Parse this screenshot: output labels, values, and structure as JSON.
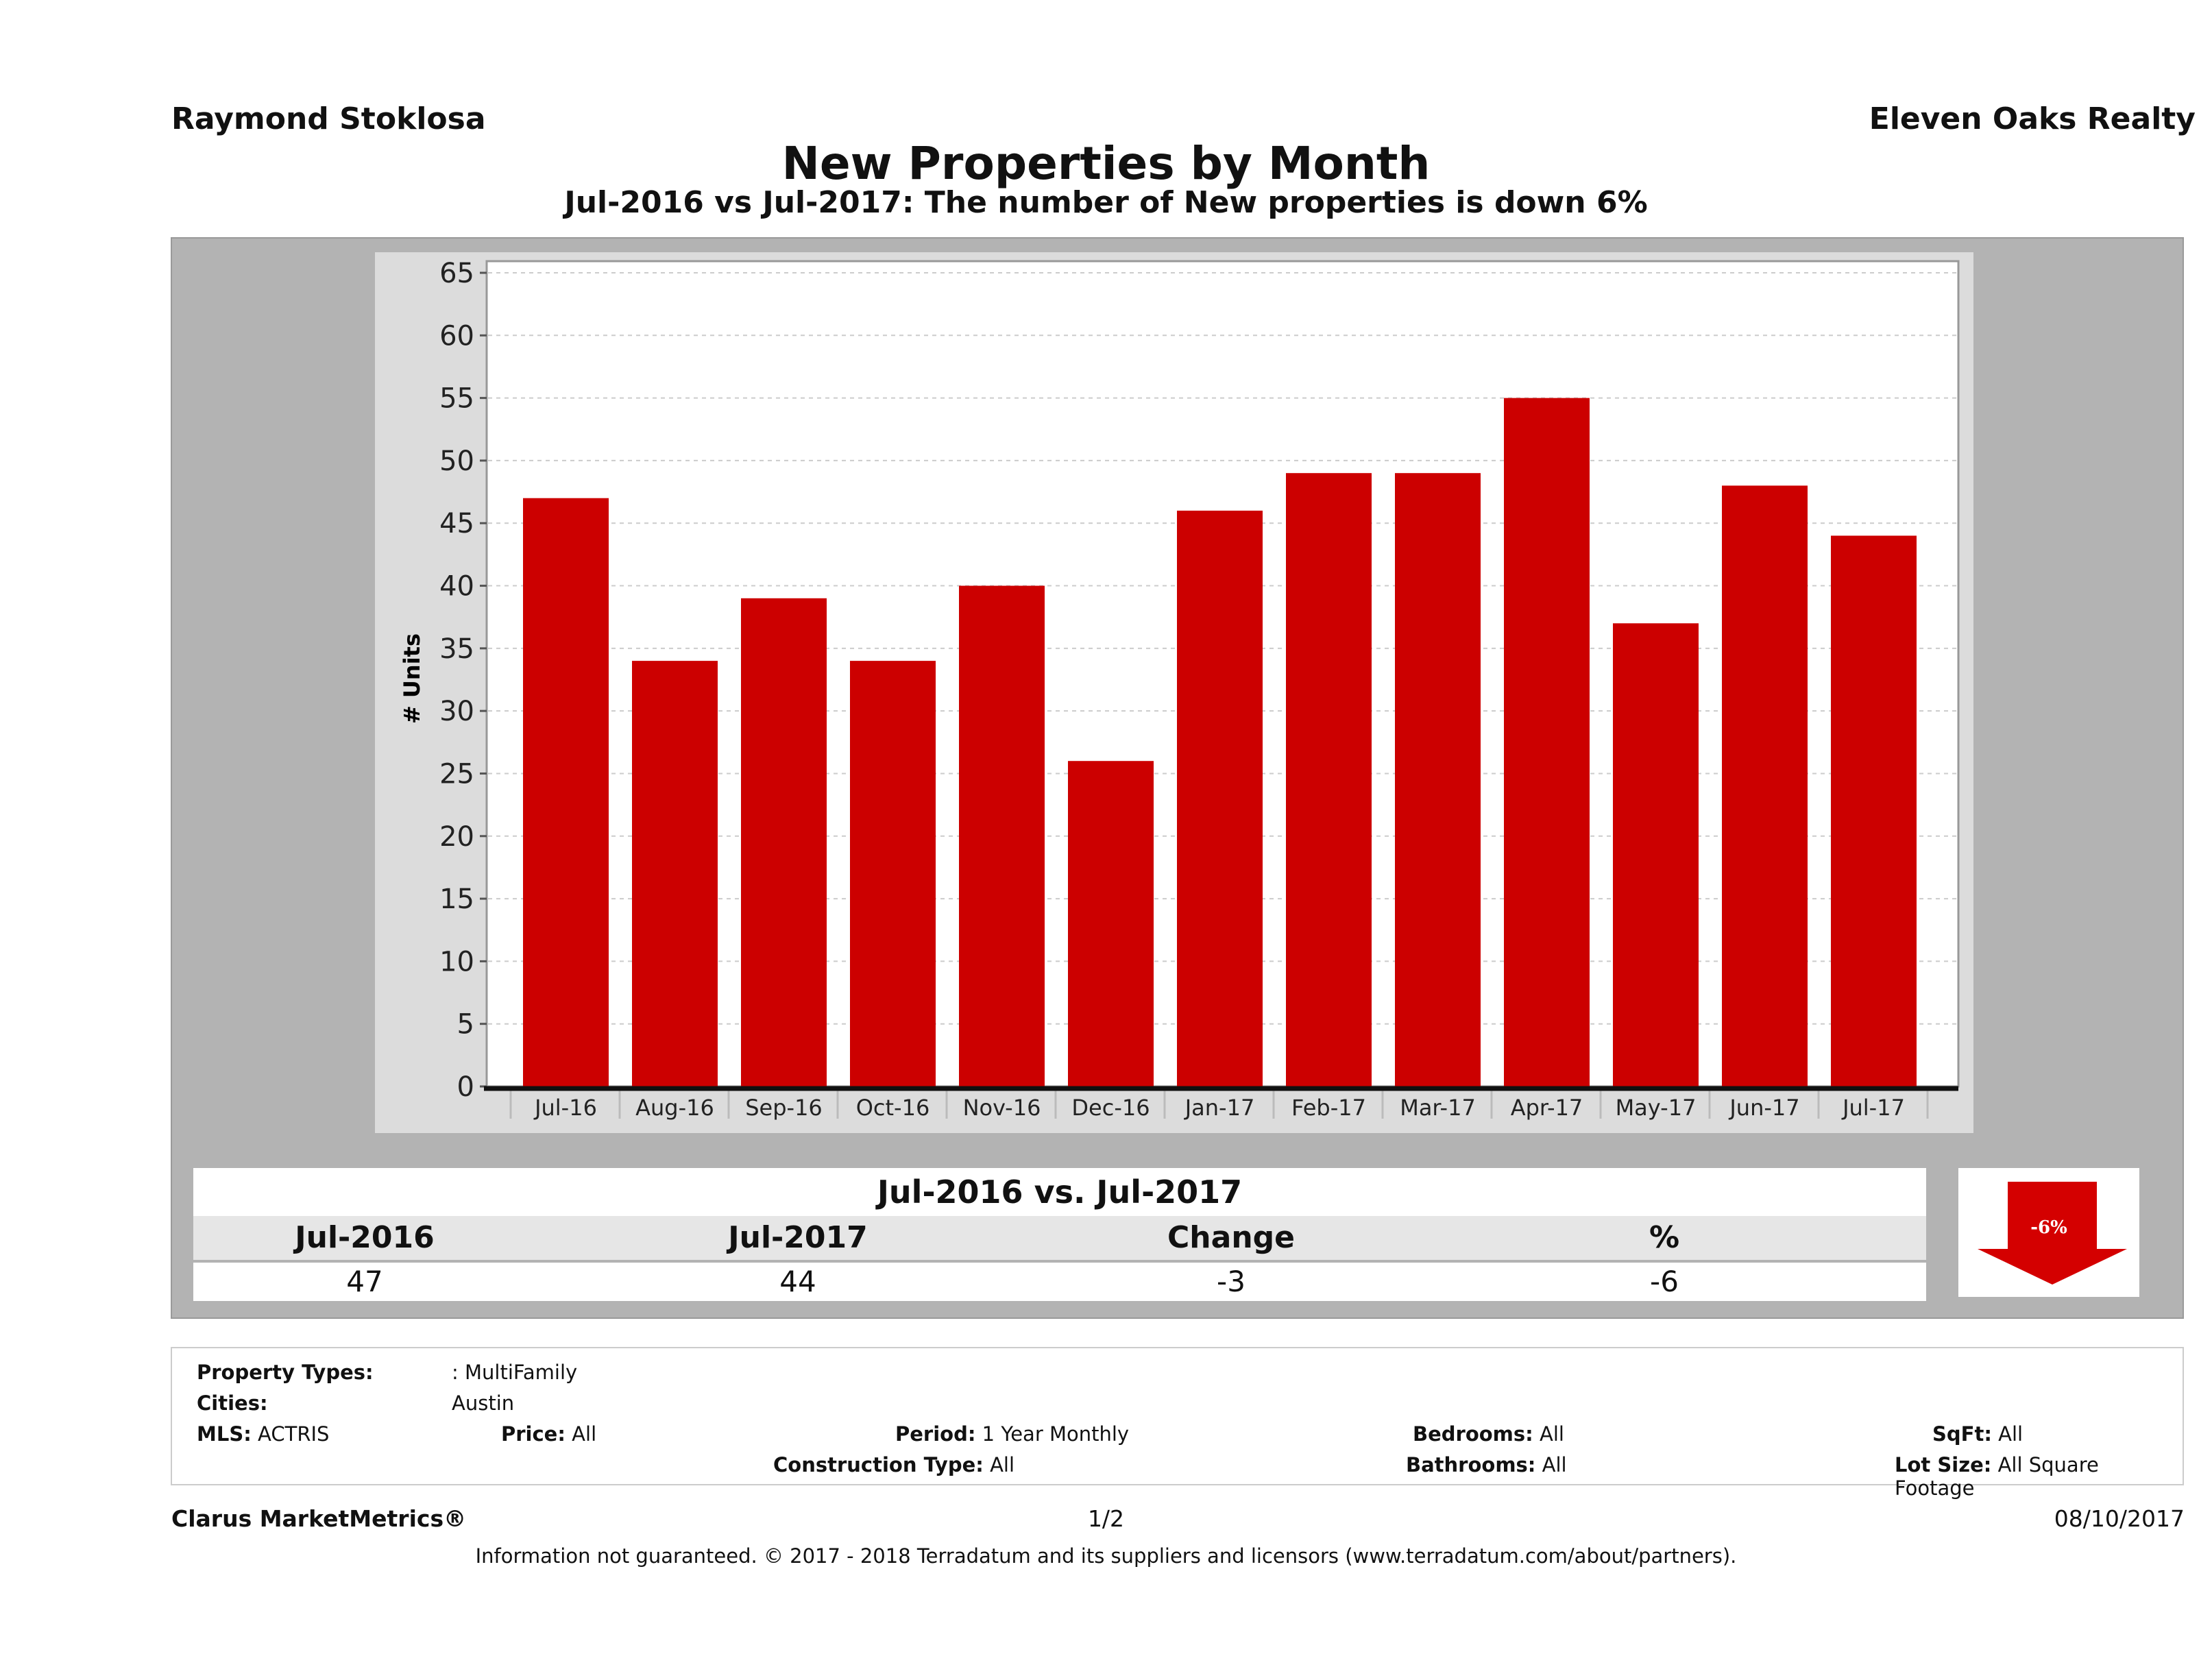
{
  "header": {
    "agent": "Raymond Stoklosa",
    "brokerage": "Eleven Oaks Realty",
    "title": "New Properties by Month",
    "subtitle": "Jul-2016 vs Jul-2017: The number of New  properties is down 6%"
  },
  "chart_data": {
    "type": "bar",
    "ylabel": "# Units",
    "xlabel": "",
    "ylim": [
      0,
      65
    ],
    "yticks": [
      "0",
      "5",
      "10",
      "15",
      "20",
      "25",
      "30",
      "35",
      "40",
      "45",
      "50",
      "55",
      "60",
      "65"
    ],
    "categories": [
      "Jul-16",
      "Aug-16",
      "Sep-16",
      "Oct-16",
      "Nov-16",
      "Dec-16",
      "Jan-17",
      "Feb-17",
      "Mar-17",
      "Apr-17",
      "May-17",
      "Jun-17",
      "Jul-17"
    ],
    "values": [
      47,
      34,
      39,
      34,
      40,
      26,
      46,
      49,
      49,
      55,
      37,
      48,
      44
    ],
    "bar_color": "#cc0000",
    "grid": true
  },
  "summary": {
    "title": "Jul-2016 vs. Jul-2017",
    "headers": [
      "Jul-2016",
      "Jul-2017",
      "Change",
      "%"
    ],
    "values": [
      "47",
      "44",
      "-3",
      "-6"
    ],
    "badge": "-6%",
    "badge_color": "#d40000",
    "badge_icon": "down-arrow"
  },
  "criteria": {
    "property_types_label": "Property Types:",
    "property_types": ": MultiFamily",
    "cities_label": "Cities:",
    "cities": "Austin",
    "mls_label": "MLS:",
    "mls": "ACTRIS",
    "price_label": "Price:",
    "price": "All",
    "period_label": "Period:",
    "period": "1 Year Monthly",
    "construction_label": "Construction Type:",
    "construction": "All",
    "bedrooms_label": "Bedrooms:",
    "bedrooms": "All",
    "bathrooms_label": "Bathrooms:",
    "bathrooms": "All",
    "sqft_label": "SqFt:",
    "sqft": "All",
    "lot_label": "Lot Size:",
    "lot": "All Square Footage"
  },
  "footer": {
    "brand": "Clarus MarketMetrics®",
    "page": "1/2",
    "date": "08/10/2017",
    "disclaimer": "Information not guaranteed. © 2017 - 2018 Terradatum and its suppliers and licensors (www.terradatum.com/about/partners)."
  }
}
